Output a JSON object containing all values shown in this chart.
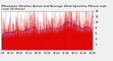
{
  "title_line1": "Milwaukee Weather Actual and Average Wind Speed by Minute mph (Last 24 Hours)",
  "title_line2": "Last 24 Hours",
  "background_color": "#f0f0f0",
  "plot_bg_color": "#ffffff",
  "grid_color": "#aaaaaa",
  "bar_color": "#dd0000",
  "avg_color": "#0000ff",
  "ylim": [
    0,
    14
  ],
  "num_points": 1440,
  "title_fontsize": 3.2,
  "tick_fontsize": 2.8,
  "ytick_values": [
    2,
    4,
    6,
    8,
    10,
    12,
    14
  ],
  "num_vgrid": 10,
  "seed": 42
}
